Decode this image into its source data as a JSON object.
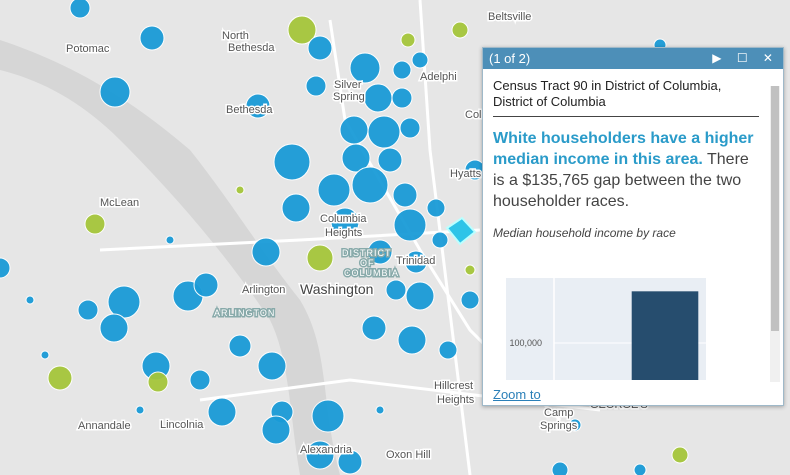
{
  "map": {
    "labels": [
      "Beltsville",
      "Potomac",
      "North",
      "Bethesda",
      "Adelphi",
      "Silver",
      "Spring",
      "Bethesda",
      "McLean",
      "Columbia",
      "Heights",
      "DISTRICT",
      "OF",
      "COLUMBIA",
      "Trinidad",
      "Arlington",
      "Washington",
      "ARLINGTON",
      "Annandale",
      "Lincolnia",
      "Alexandria",
      "Oxon Hill",
      "Hillcrest",
      "Heights",
      "Camp",
      "Springs",
      "Hyatts",
      "Col",
      "GEORGE'S"
    ]
  },
  "popup": {
    "pager": "(1 of 2)",
    "title": "Census Tract 90 in District of Columbia, District of Columbia",
    "headline": "White householders have a higher median income in this area.",
    "body": "There is a $135,765 gap between the two householder races.",
    "chart_data": {
      "type": "bar",
      "title": "Median household income by race",
      "categories": [
        null,
        null
      ],
      "values": [
        null,
        176000
      ],
      "color": "#264d6e",
      "ylim": [
        0,
        200000
      ],
      "yticks": [
        {
          "value": 100000,
          "label": "100,000"
        }
      ],
      "grid": true
    },
    "action": "Zoom to"
  }
}
